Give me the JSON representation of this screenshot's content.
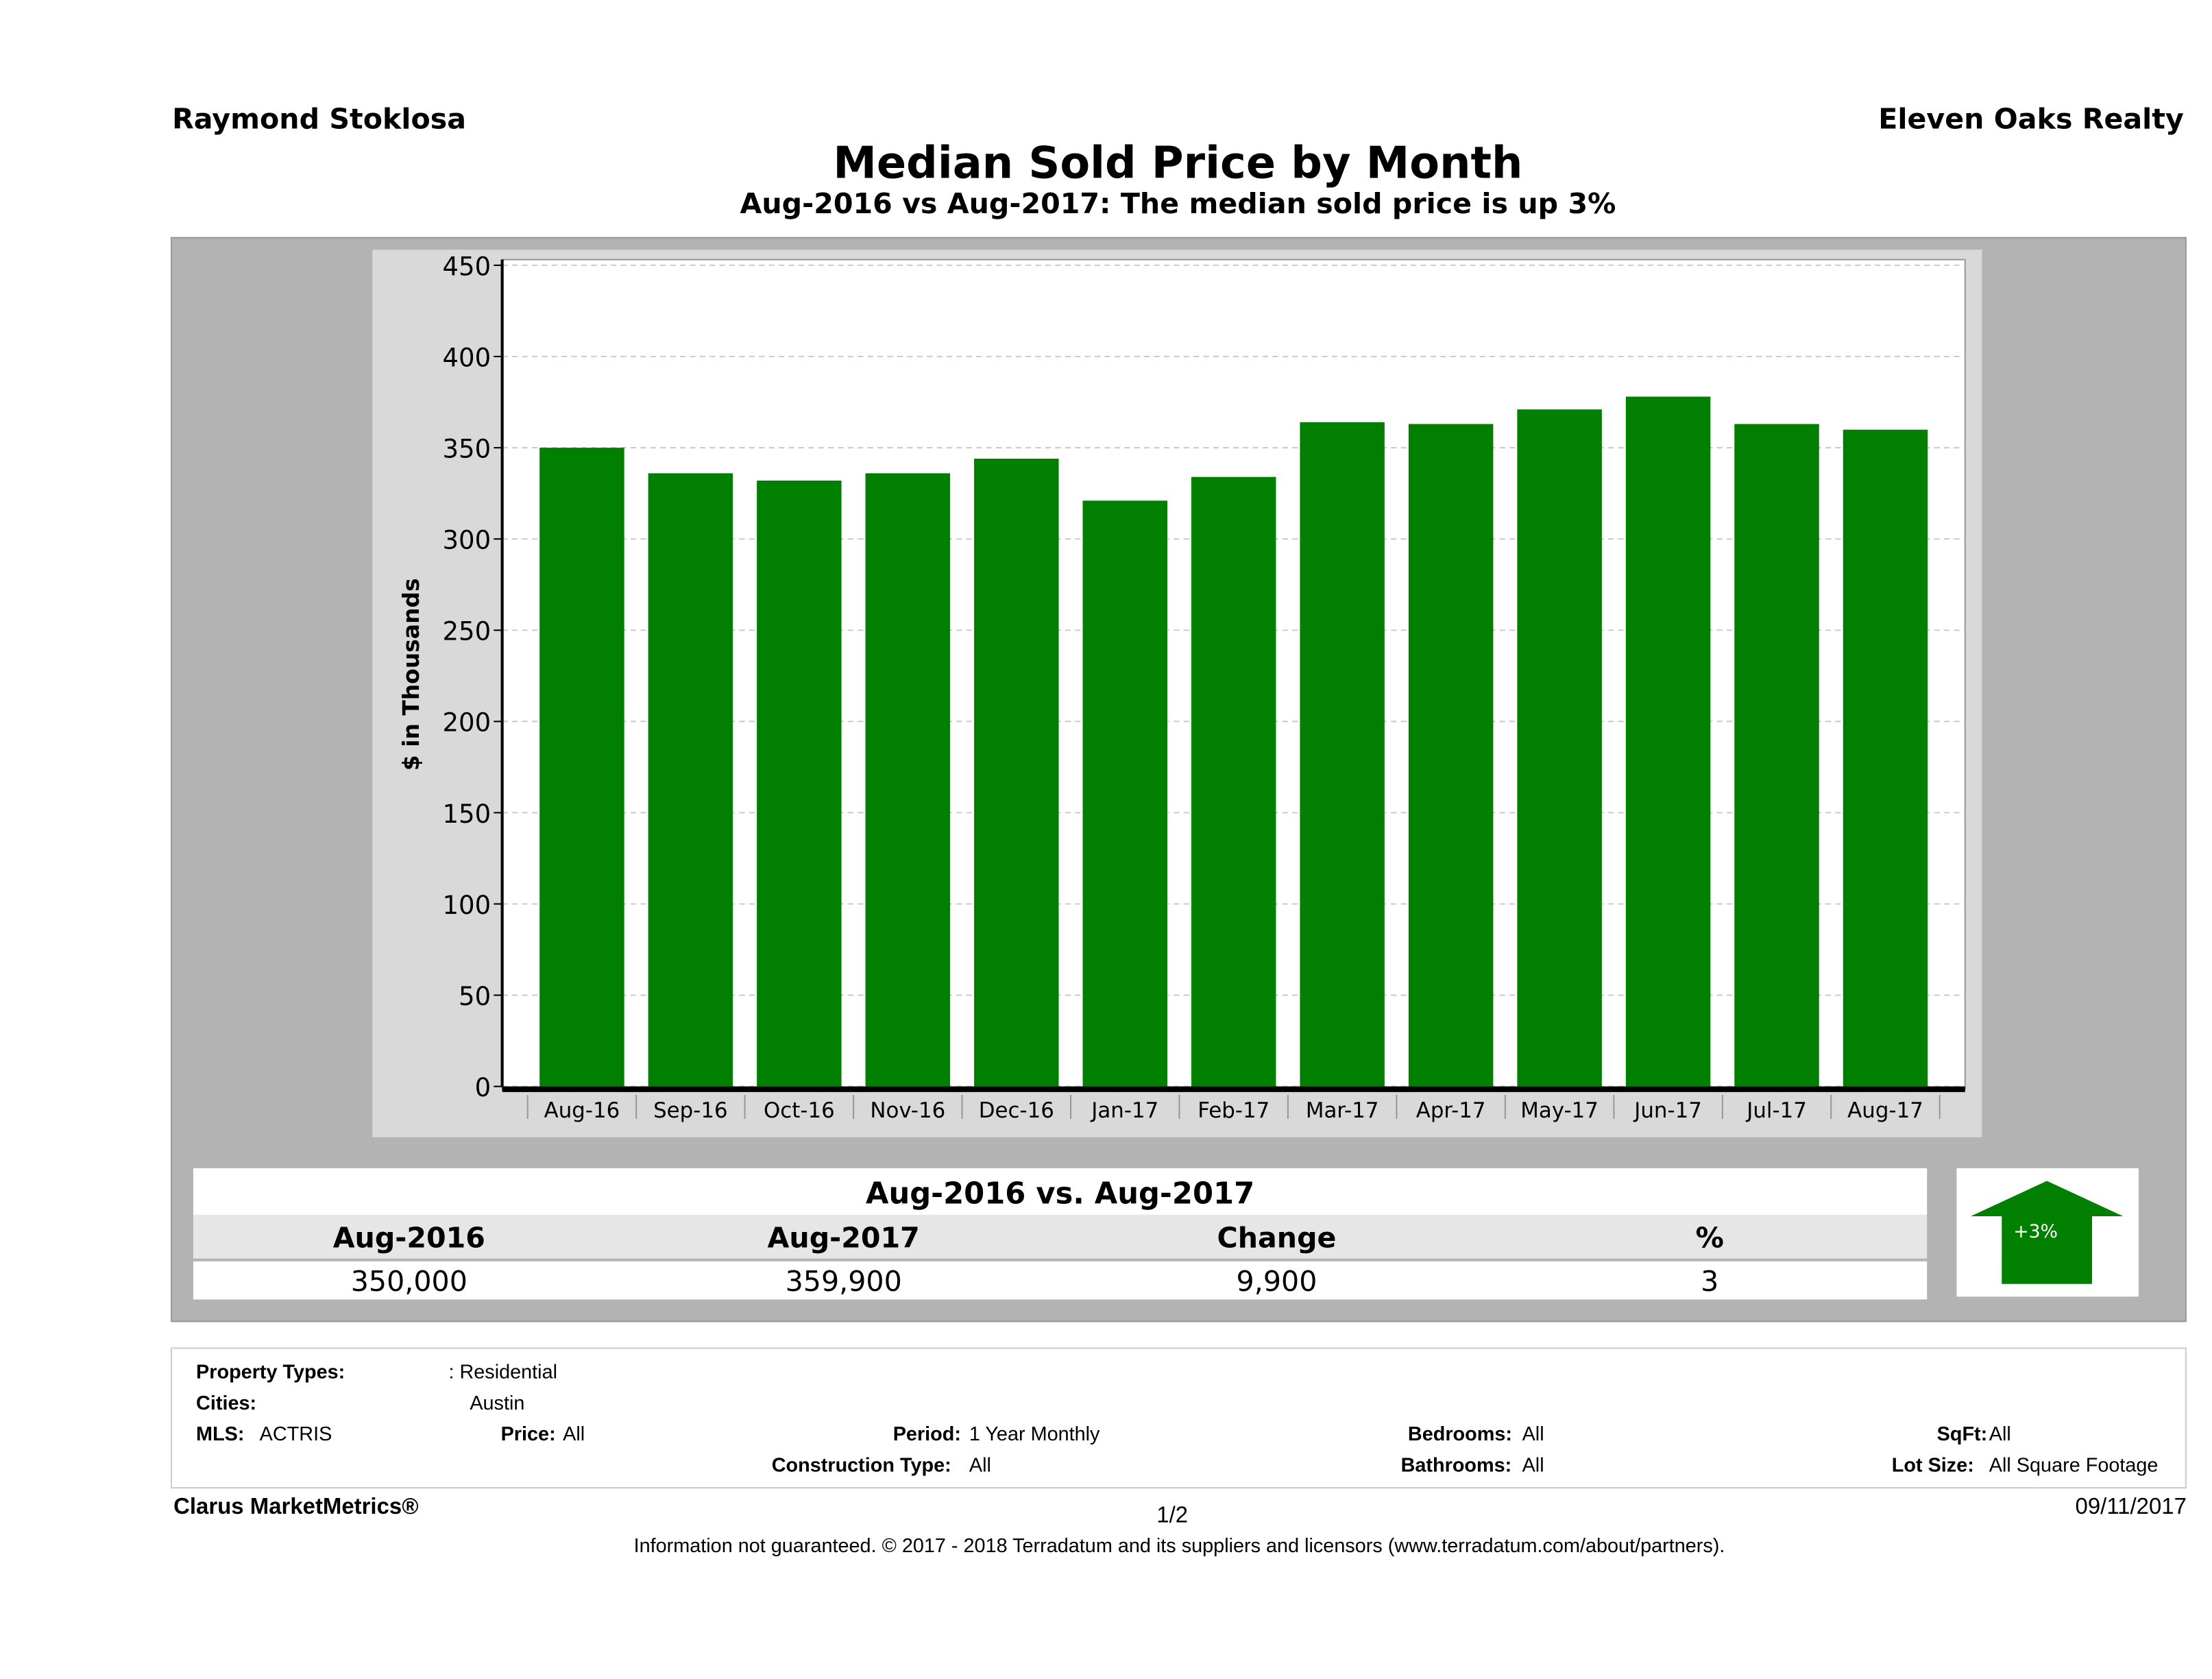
{
  "header": {
    "agent": "Raymond Stoklosa",
    "company": "Eleven Oaks Realty"
  },
  "chart_data": {
    "type": "bar",
    "title": "Median Sold Price by Month",
    "subtitle": "Aug-2016 vs Aug-2017: The median sold price is up 3%",
    "ylabel": "$ in Thousands",
    "xlabel": "",
    "ylim": [
      0,
      450
    ],
    "yticks": [
      "0",
      "50",
      "100",
      "150",
      "200",
      "250",
      "300",
      "350",
      "400",
      "450"
    ],
    "categories": [
      "Aug-16",
      "Sep-16",
      "Oct-16",
      "Nov-16",
      "Dec-16",
      "Jan-17",
      "Feb-17",
      "Mar-17",
      "Apr-17",
      "May-17",
      "Jun-17",
      "Jul-17",
      "Aug-17"
    ],
    "values": [
      350,
      336,
      332,
      336,
      344,
      321,
      334,
      364,
      363,
      371,
      378,
      363,
      359.9
    ],
    "bar_color": "#007f00",
    "grid": true
  },
  "comparison": {
    "title": "Aug-2016 vs. Aug-2017",
    "headers": [
      "Aug-2016",
      "Aug-2017",
      "Change",
      "%"
    ],
    "values": [
      "350,000",
      "359,900",
      "9,900",
      "3"
    ],
    "badge": "+3%",
    "badge_icon": "up-arrow-icon",
    "badge_color": "#007f00"
  },
  "info": {
    "property_types_label": "Property Types:",
    "property_types": ": Residential",
    "cities_label": "Cities:",
    "cities": "Austin",
    "mls_label": "MLS:",
    "mls": "ACTRIS",
    "price_label": "Price:",
    "price": "All",
    "period_label": "Period:",
    "period": "1 Year Monthly",
    "bedrooms_label": "Bedrooms:",
    "bedrooms": "All",
    "sqft_label": "SqFt:",
    "sqft": "All",
    "construction_label": "Construction Type:",
    "construction": "All",
    "bathrooms_label": "Bathrooms:",
    "bathrooms": "All",
    "lotsize_label": "Lot Size:",
    "lotsize": "All Square Footage"
  },
  "footer": {
    "brand": "Clarus MarketMetrics®",
    "page": "1/2",
    "date": "09/11/2017",
    "disclaimer": "Information not guaranteed. © 2017 - 2018 Terradatum and its suppliers and licensors (www.terradatum.com/about/partners)."
  }
}
